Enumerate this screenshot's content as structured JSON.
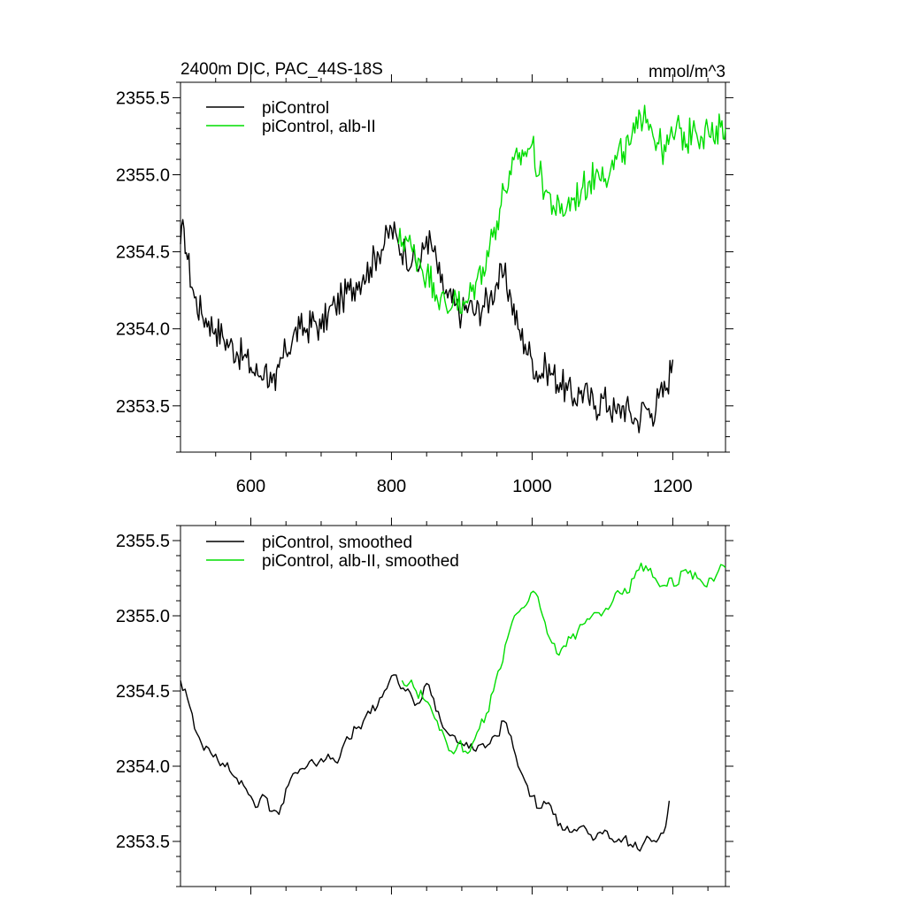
{
  "chart_data": [
    {
      "type": "line",
      "title": "2400m DIC, PAC_44S-18S",
      "units": "mmol/m^3",
      "xlim": [
        500,
        1275
      ],
      "ylim": [
        2353.2,
        2355.6
      ],
      "xticks": [
        600,
        800,
        1000,
        1200
      ],
      "xtick_labels": [
        "600",
        "800",
        "1000",
        "1200"
      ],
      "yticks": [
        2353.5,
        2354.0,
        2354.5,
        2355.0,
        2355.5
      ],
      "ytick_labels": [
        "2353.5",
        "2354.0",
        "2354.5",
        "2355.0",
        "2355.5"
      ],
      "legend_position": "top-left",
      "series": [
        {
          "name": "piControl",
          "color": "#000000",
          "x": [
            500,
            505,
            510,
            520,
            530,
            540,
            550,
            560,
            570,
            580,
            590,
            600,
            610,
            620,
            630,
            635,
            640,
            650,
            660,
            670,
            680,
            690,
            700,
            710,
            720,
            730,
            740,
            750,
            760,
            770,
            780,
            790,
            800,
            810,
            820,
            830,
            840,
            850,
            860,
            870,
            880,
            890,
            900,
            910,
            920,
            930,
            940,
            950,
            960,
            970,
            980,
            990,
            1000,
            1010,
            1020,
            1030,
            1040,
            1050,
            1060,
            1070,
            1080,
            1090,
            1100,
            1110,
            1120,
            1130,
            1140,
            1150,
            1160,
            1170,
            1180,
            1190,
            1200
          ],
          "values": [
            2354.55,
            2354.65,
            2354.45,
            2354.2,
            2354.1,
            2354.05,
            2354.0,
            2353.95,
            2353.9,
            2353.85,
            2353.82,
            2353.75,
            2353.7,
            2353.75,
            2353.65,
            2353.6,
            2353.75,
            2353.85,
            2353.95,
            2354.0,
            2354.0,
            2354.05,
            2354.0,
            2354.1,
            2354.15,
            2354.2,
            2354.25,
            2354.3,
            2354.35,
            2354.4,
            2354.5,
            2354.55,
            2354.65,
            2354.55,
            2354.5,
            2354.45,
            2354.4,
            2354.6,
            2354.5,
            2354.3,
            2354.2,
            2354.15,
            2354.1,
            2354.15,
            2354.1,
            2354.15,
            2354.2,
            2354.3,
            2354.35,
            2354.2,
            2354.0,
            2353.9,
            2353.8,
            2353.7,
            2353.75,
            2353.7,
            2353.65,
            2353.6,
            2353.55,
            2353.6,
            2353.55,
            2353.5,
            2353.55,
            2353.5,
            2353.45,
            2353.5,
            2353.45,
            2353.4,
            2353.5,
            2353.45,
            2353.55,
            2353.6,
            2353.8
          ]
        },
        {
          "name": "piControl, alb-II",
          "color": "#00dd00",
          "x": [
            810,
            820,
            830,
            840,
            850,
            860,
            870,
            880,
            890,
            900,
            910,
            920,
            930,
            940,
            950,
            960,
            970,
            980,
            990,
            1000,
            1010,
            1020,
            1030,
            1040,
            1050,
            1060,
            1070,
            1080,
            1090,
            1100,
            1110,
            1120,
            1130,
            1140,
            1150,
            1160,
            1170,
            1180,
            1190,
            1200,
            1210,
            1220,
            1230,
            1240,
            1250,
            1260,
            1270,
            1275
          ],
          "values": [
            2354.55,
            2354.6,
            2354.5,
            2354.45,
            2354.35,
            2354.3,
            2354.2,
            2354.1,
            2354.25,
            2354.1,
            2354.2,
            2354.3,
            2354.4,
            2354.55,
            2354.7,
            2354.9,
            2355.0,
            2355.1,
            2355.15,
            2355.2,
            2355.0,
            2354.9,
            2354.8,
            2354.75,
            2354.8,
            2354.85,
            2354.9,
            2354.95,
            2355.0,
            2355.05,
            2355.0,
            2355.1,
            2355.15,
            2355.2,
            2355.3,
            2355.45,
            2355.3,
            2355.2,
            2355.15,
            2355.25,
            2355.3,
            2355.2,
            2355.35,
            2355.25,
            2355.3,
            2355.2,
            2355.35,
            2355.3
          ]
        }
      ]
    },
    {
      "type": "line",
      "title": "",
      "xlim": [
        500,
        1275
      ],
      "ylim": [
        2353.2,
        2355.6
      ],
      "xticks": [
        600,
        800,
        1000,
        1200
      ],
      "yticks": [
        2353.5,
        2354.0,
        2354.5,
        2355.0,
        2355.5
      ],
      "ytick_labels": [
        "2353.5",
        "2354.0",
        "2354.5",
        "2355.0",
        "2355.5"
      ],
      "legend_position": "top-left",
      "series": [
        {
          "name": "piControl, smoothed",
          "color": "#000000",
          "x": [
            500,
            510,
            520,
            530,
            540,
            550,
            560,
            570,
            580,
            590,
            600,
            610,
            620,
            630,
            640,
            650,
            660,
            670,
            680,
            690,
            700,
            710,
            720,
            730,
            740,
            750,
            760,
            770,
            780,
            790,
            800,
            810,
            820,
            830,
            840,
            850,
            860,
            870,
            880,
            890,
            900,
            910,
            920,
            930,
            940,
            950,
            960,
            970,
            980,
            990,
            1000,
            1010,
            1020,
            1030,
            1040,
            1050,
            1060,
            1070,
            1080,
            1090,
            1100,
            1110,
            1120,
            1130,
            1140,
            1150,
            1160,
            1170,
            1180,
            1190,
            1195
          ],
          "values": [
            2354.57,
            2354.45,
            2354.25,
            2354.15,
            2354.12,
            2354.08,
            2354.02,
            2353.97,
            2353.92,
            2353.87,
            2353.8,
            2353.73,
            2353.8,
            2353.7,
            2353.68,
            2353.85,
            2353.95,
            2353.98,
            2354.0,
            2354.02,
            2354.05,
            2354.08,
            2354.03,
            2354.12,
            2354.18,
            2354.25,
            2354.3,
            2354.35,
            2354.4,
            2354.5,
            2354.6,
            2354.55,
            2354.5,
            2354.45,
            2354.42,
            2354.55,
            2354.45,
            2354.3,
            2354.22,
            2354.2,
            2354.15,
            2354.12,
            2354.1,
            2354.15,
            2354.15,
            2354.2,
            2354.3,
            2354.2,
            2354.0,
            2353.9,
            2353.8,
            2353.72,
            2353.75,
            2353.68,
            2353.62,
            2353.6,
            2353.58,
            2353.6,
            2353.55,
            2353.52,
            2353.55,
            2353.52,
            2353.5,
            2353.52,
            2353.48,
            2353.45,
            2353.5,
            2353.5,
            2353.52,
            2353.6,
            2353.77
          ]
        },
        {
          "name": "piControl, alb-II, smoothed",
          "color": "#00dd00",
          "x": [
            815,
            825,
            835,
            845,
            855,
            865,
            875,
            885,
            895,
            905,
            915,
            925,
            935,
            945,
            955,
            965,
            975,
            985,
            995,
            1005,
            1015,
            1025,
            1035,
            1045,
            1055,
            1065,
            1075,
            1085,
            1095,
            1105,
            1115,
            1125,
            1135,
            1145,
            1155,
            1165,
            1175,
            1185,
            1195,
            1205,
            1215,
            1225,
            1235,
            1245,
            1255,
            1265,
            1275
          ],
          "values": [
            2354.57,
            2354.55,
            2354.5,
            2354.45,
            2354.4,
            2354.3,
            2354.2,
            2354.1,
            2354.15,
            2354.1,
            2354.15,
            2354.25,
            2354.35,
            2354.5,
            2354.65,
            2354.85,
            2355.0,
            2355.05,
            2355.1,
            2355.15,
            2355.0,
            2354.85,
            2354.75,
            2354.8,
            2354.85,
            2354.9,
            2354.95,
            2355.0,
            2355.02,
            2355.05,
            2355.1,
            2355.15,
            2355.15,
            2355.25,
            2355.35,
            2355.3,
            2355.25,
            2355.2,
            2355.25,
            2355.2,
            2355.3,
            2355.3,
            2355.25,
            2355.2,
            2355.25,
            2355.3,
            2355.32
          ]
        }
      ]
    }
  ]
}
